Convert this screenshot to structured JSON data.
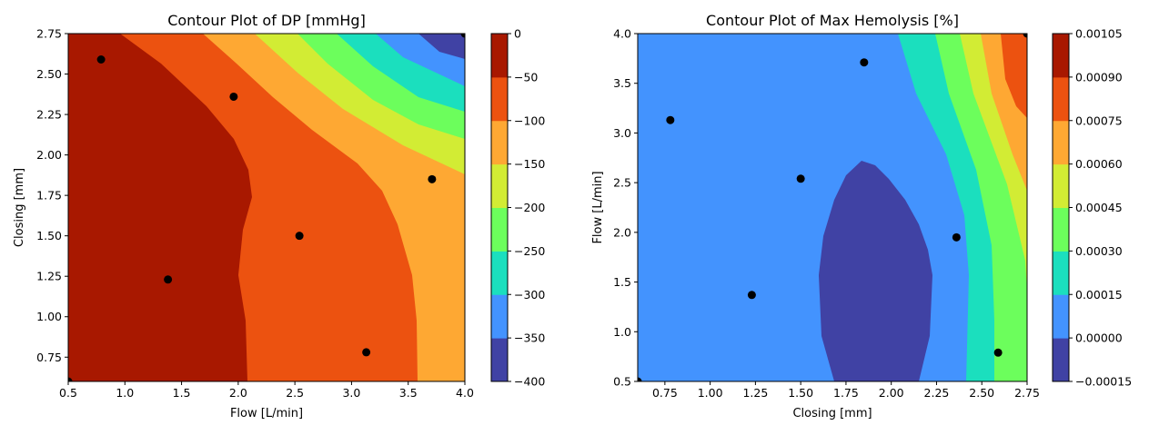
{
  "chart_data": [
    {
      "type": "contour",
      "title": "Contour Plot of DP [mmHg]",
      "xlabel": "Flow [L/min]",
      "ylabel": "Closing [mm]",
      "xlim": [
        0.5,
        4.0
      ],
      "ylim": [
        0.6,
        2.75
      ],
      "xticks": [
        "0.5",
        "1.0",
        "1.5",
        "2.0",
        "2.5",
        "3.0",
        "3.5",
        "4.0"
      ],
      "yticks": [
        "0.75",
        "1.00",
        "1.25",
        "1.50",
        "1.75",
        "2.00",
        "2.25",
        "2.50",
        "2.75"
      ],
      "colorbar": {
        "levels": [
          -400,
          -350,
          -300,
          -250,
          -200,
          -150,
          -100,
          -50,
          0
        ],
        "ticks": [
          "−400",
          "−350",
          "−300",
          "−250",
          "−200",
          "−150",
          "−100",
          "−50",
          "0"
        ],
        "colors": [
          "#4042a4",
          "#4393fe",
          "#1bdfbe",
          "#6cfe5c",
          "#d2ec34",
          "#fea833",
          "#ec5210",
          "#a81800"
        ]
      },
      "points": [
        [
          0.5,
          0.6
        ],
        [
          0.79,
          2.59
        ],
        [
          1.38,
          1.23
        ],
        [
          1.96,
          2.36
        ],
        [
          2.54,
          1.5
        ],
        [
          3.13,
          0.78
        ],
        [
          3.71,
          1.85
        ],
        [
          4.0,
          2.75
        ]
      ]
    },
    {
      "type": "contour",
      "title": "Contour Plot of Max Hemolysis [%]",
      "xlabel": "Closing [mm]",
      "ylabel": "Flow [L/min]",
      "xlim": [
        0.6,
        2.75
      ],
      "ylim": [
        0.5,
        4.0
      ],
      "xticks": [
        "0.75",
        "1.00",
        "1.25",
        "1.50",
        "1.75",
        "2.00",
        "2.25",
        "2.50",
        "2.75"
      ],
      "yticks": [
        "0.5",
        "1.0",
        "1.5",
        "2.0",
        "2.5",
        "3.0",
        "3.5",
        "4.0"
      ],
      "colorbar": {
        "levels": [
          -0.00015,
          0,
          0.00015,
          0.0003,
          0.00045,
          0.0006,
          0.00075,
          0.0009,
          0.00105
        ],
        "ticks": [
          "−0.00015",
          "0.00000",
          "0.00015",
          "0.00030",
          "0.00045",
          "0.00060",
          "0.00075",
          "0.00090",
          "0.00105"
        ],
        "colors": [
          "#4042a4",
          "#4393fe",
          "#1bdfbe",
          "#6cfe5c",
          "#d2ec34",
          "#fea833",
          "#ec5210",
          "#a81800"
        ]
      },
      "points": [
        [
          0.6,
          0.5
        ],
        [
          0.78,
          3.13
        ],
        [
          1.23,
          1.37
        ],
        [
          1.5,
          2.54
        ],
        [
          1.85,
          3.71
        ],
        [
          2.36,
          1.95
        ],
        [
          2.59,
          0.79
        ],
        [
          2.75,
          4.0
        ]
      ]
    }
  ]
}
